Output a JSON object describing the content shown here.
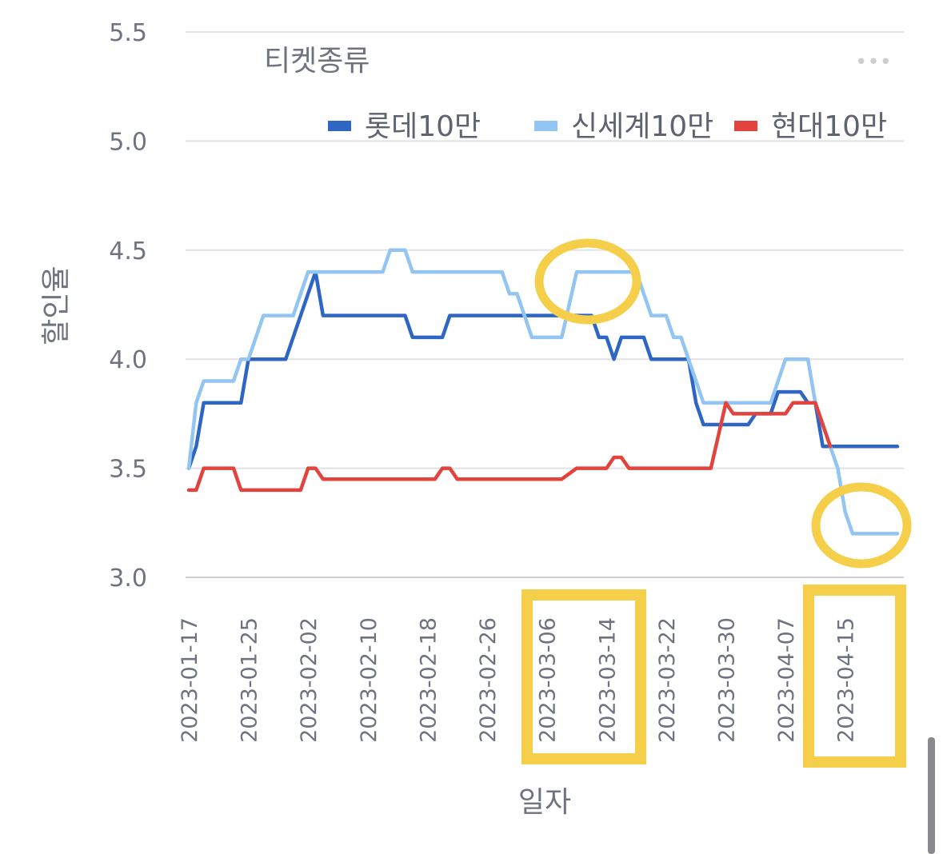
{
  "chart_data": {
    "type": "line",
    "legend_title": "티켓종류",
    "more_menu": "•••",
    "xlabel": "일자",
    "ylabel": "할인율",
    "ylim": [
      3.0,
      5.5
    ],
    "yticks": [
      "3.0",
      "3.5",
      "4.0",
      "4.5",
      "5.0",
      "5.5"
    ],
    "xlim": [
      "2023-01-17",
      "2023-04-22"
    ],
    "xticks": [
      "2023-01-17",
      "2023-01-25",
      "2023-02-02",
      "2023-02-10",
      "2023-02-18",
      "2023-02-26",
      "2023-03-06",
      "2023-03-14",
      "2023-03-22",
      "2023-03-30",
      "2023-04-07",
      "2023-04-15"
    ],
    "legend_position": "top-right",
    "grid": true,
    "series": [
      {
        "name": "롯데10만",
        "color": "#2f66c3",
        "points": [
          [
            "2023-01-17",
            3.5
          ],
          [
            "2023-01-18",
            3.6
          ],
          [
            "2023-01-19",
            3.8
          ],
          [
            "2023-01-24",
            3.8
          ],
          [
            "2023-01-25",
            4.0
          ],
          [
            "2023-01-30",
            4.0
          ],
          [
            "2023-02-03",
            4.4
          ],
          [
            "2023-02-04",
            4.2
          ],
          [
            "2023-02-15",
            4.2
          ],
          [
            "2023-02-16",
            4.1
          ],
          [
            "2023-02-20",
            4.1
          ],
          [
            "2023-02-21",
            4.2
          ],
          [
            "2023-03-09",
            4.2
          ],
          [
            "2023-03-12",
            4.2
          ],
          [
            "2023-03-13",
            4.1
          ],
          [
            "2023-03-14",
            4.1
          ],
          [
            "2023-03-15",
            4.0
          ],
          [
            "2023-03-16",
            4.1
          ],
          [
            "2023-03-19",
            4.1
          ],
          [
            "2023-03-20",
            4.0
          ],
          [
            "2023-03-25",
            4.0
          ],
          [
            "2023-03-26",
            3.8
          ],
          [
            "2023-03-27",
            3.7
          ],
          [
            "2023-04-02",
            3.7
          ],
          [
            "2023-04-03",
            3.75
          ],
          [
            "2023-04-05",
            3.75
          ],
          [
            "2023-04-06",
            3.85
          ],
          [
            "2023-04-09",
            3.85
          ],
          [
            "2023-04-10",
            3.8
          ],
          [
            "2023-04-11",
            3.8
          ],
          [
            "2023-04-12",
            3.6
          ],
          [
            "2023-04-22",
            3.6
          ]
        ]
      },
      {
        "name": "신세계10만",
        "color": "#92c5f1",
        "points": [
          [
            "2023-01-17",
            3.5
          ],
          [
            "2023-01-18",
            3.8
          ],
          [
            "2023-01-19",
            3.9
          ],
          [
            "2023-01-23",
            3.9
          ],
          [
            "2023-01-24",
            4.0
          ],
          [
            "2023-01-25",
            4.0
          ],
          [
            "2023-01-27",
            4.2
          ],
          [
            "2023-01-31",
            4.2
          ],
          [
            "2023-02-02",
            4.4
          ],
          [
            "2023-02-12",
            4.4
          ],
          [
            "2023-02-13",
            4.5
          ],
          [
            "2023-02-15",
            4.5
          ],
          [
            "2023-02-16",
            4.4
          ],
          [
            "2023-02-28",
            4.4
          ],
          [
            "2023-03-01",
            4.3
          ],
          [
            "2023-03-02",
            4.3
          ],
          [
            "2023-03-04",
            4.1
          ],
          [
            "2023-03-08",
            4.1
          ],
          [
            "2023-03-10",
            4.4
          ],
          [
            "2023-03-18",
            4.4
          ],
          [
            "2023-03-20",
            4.2
          ],
          [
            "2023-03-22",
            4.2
          ],
          [
            "2023-03-23",
            4.1
          ],
          [
            "2023-03-24",
            4.1
          ],
          [
            "2023-03-27",
            3.8
          ],
          [
            "2023-04-05",
            3.8
          ],
          [
            "2023-04-07",
            4.0
          ],
          [
            "2023-04-10",
            4.0
          ],
          [
            "2023-04-11",
            3.8
          ],
          [
            "2023-04-14",
            3.5
          ],
          [
            "2023-04-15",
            3.3
          ],
          [
            "2023-04-16",
            3.2
          ],
          [
            "2023-04-22",
            3.2
          ]
        ]
      },
      {
        "name": "현대10만",
        "color": "#e2433d",
        "points": [
          [
            "2023-01-17",
            3.4
          ],
          [
            "2023-01-18",
            3.4
          ],
          [
            "2023-01-19",
            3.5
          ],
          [
            "2023-01-23",
            3.5
          ],
          [
            "2023-01-24",
            3.4
          ],
          [
            "2023-02-01",
            3.4
          ],
          [
            "2023-02-02",
            3.5
          ],
          [
            "2023-02-03",
            3.5
          ],
          [
            "2023-02-04",
            3.45
          ],
          [
            "2023-02-19",
            3.45
          ],
          [
            "2023-02-20",
            3.5
          ],
          [
            "2023-02-21",
            3.5
          ],
          [
            "2023-02-22",
            3.45
          ],
          [
            "2023-03-08",
            3.45
          ],
          [
            "2023-03-10",
            3.5
          ],
          [
            "2023-03-14",
            3.5
          ],
          [
            "2023-03-15",
            3.55
          ],
          [
            "2023-03-16",
            3.55
          ],
          [
            "2023-03-17",
            3.5
          ],
          [
            "2023-03-28",
            3.5
          ],
          [
            "2023-03-30",
            3.8
          ],
          [
            "2023-03-31",
            3.75
          ],
          [
            "2023-04-07",
            3.75
          ],
          [
            "2023-04-08",
            3.8
          ],
          [
            "2023-04-11",
            3.8
          ],
          [
            "2023-04-13",
            3.6
          ]
        ]
      }
    ]
  }
}
